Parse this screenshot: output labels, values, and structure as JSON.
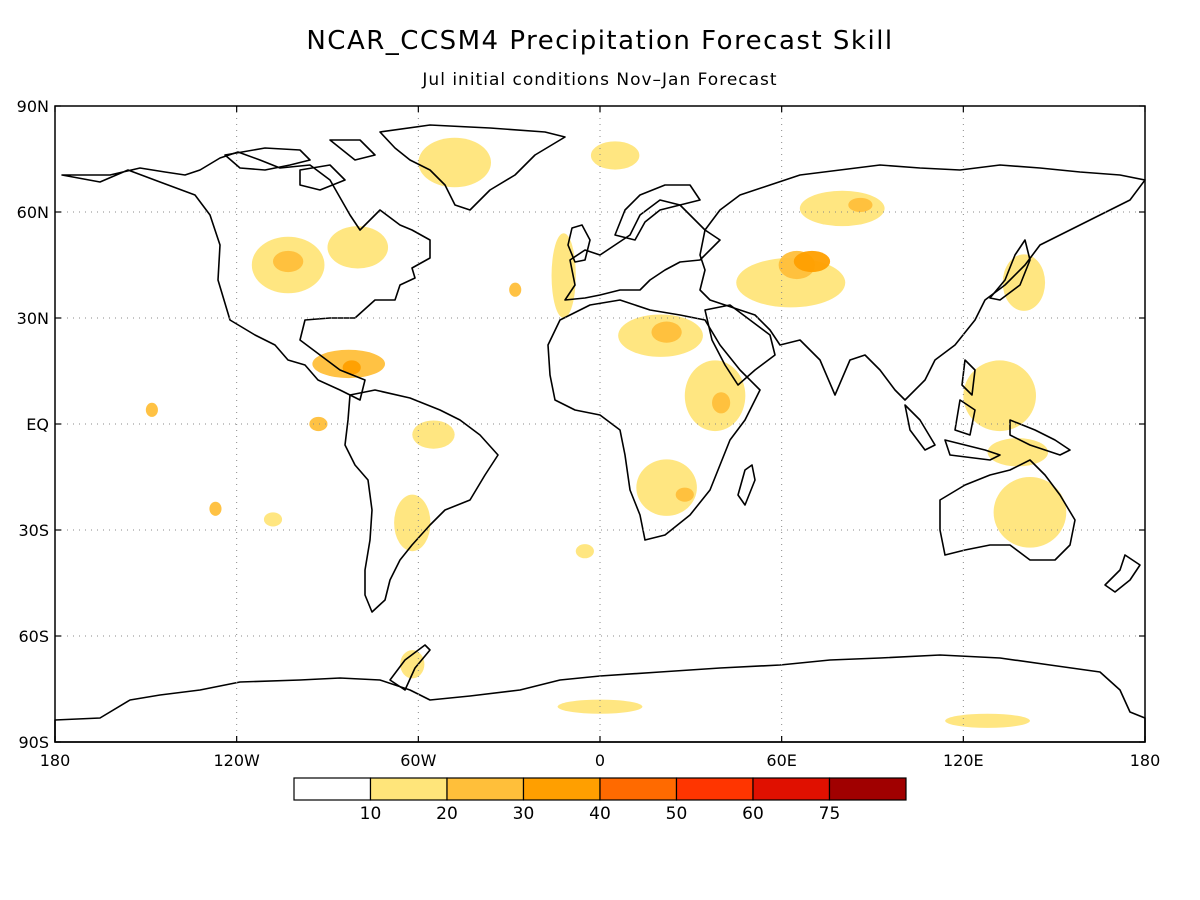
{
  "title": "NCAR_CCSM4 Precipitation Forecast Skill",
  "subtitle": "Jul initial conditions   Nov–Jan Forecast",
  "map": {
    "lon_range": [
      -180,
      180
    ],
    "lat_range": [
      -90,
      90
    ],
    "lat_ticks": [
      {
        "value": 90,
        "label": "90N"
      },
      {
        "value": 60,
        "label": "60N"
      },
      {
        "value": 30,
        "label": "30N"
      },
      {
        "value": 0,
        "label": "EQ"
      },
      {
        "value": -30,
        "label": "30S"
      },
      {
        "value": -60,
        "label": "60S"
      },
      {
        "value": -90,
        "label": "90S"
      }
    ],
    "lon_ticks": [
      {
        "value": -180,
        "label": "180"
      },
      {
        "value": -120,
        "label": "120W"
      },
      {
        "value": -60,
        "label": "60W"
      },
      {
        "value": 0,
        "label": "0"
      },
      {
        "value": 60,
        "label": "60E"
      },
      {
        "value": 120,
        "label": "120E"
      },
      {
        "value": 180,
        "label": "180"
      }
    ],
    "gridlines": "dotted",
    "coastline_color": "#000000"
  },
  "colorbar": {
    "colors": [
      "#ffffff",
      "#ffe57a",
      "#ffbf3a",
      "#ff9f00",
      "#ff6a00",
      "#ff3500",
      "#e01000",
      "#a00000"
    ],
    "labels": [
      "10",
      "20",
      "30",
      "40",
      "50",
      "60",
      "75"
    ]
  },
  "skill_patches": [
    {
      "lon": -103,
      "lat": 45,
      "rx": 12,
      "ry": 8,
      "level": 1
    },
    {
      "lon": -103,
      "lat": 46,
      "rx": 5,
      "ry": 3,
      "level": 2
    },
    {
      "lon": -80,
      "lat": 50,
      "rx": 10,
      "ry": 6,
      "level": 1
    },
    {
      "lon": -83,
      "lat": 17,
      "rx": 12,
      "ry": 4,
      "level": 2
    },
    {
      "lon": -82,
      "lat": 16,
      "rx": 3,
      "ry": 2,
      "level": 3
    },
    {
      "lon": -48,
      "lat": 74,
      "rx": 12,
      "ry": 7,
      "level": 1
    },
    {
      "lon": -55,
      "lat": -3,
      "rx": 7,
      "ry": 4,
      "level": 1
    },
    {
      "lon": -62,
      "lat": -28,
      "rx": 6,
      "ry": 8,
      "level": 1
    },
    {
      "lon": -28,
      "lat": 38,
      "rx": 2,
      "ry": 2,
      "level": 2
    },
    {
      "lon": -12,
      "lat": 42,
      "rx": 4,
      "ry": 12,
      "level": 1
    },
    {
      "lon": -148,
      "lat": 4,
      "rx": 2,
      "ry": 2,
      "level": 2
    },
    {
      "lon": -93,
      "lat": 0,
      "rx": 3,
      "ry": 2,
      "level": 2
    },
    {
      "lon": -127,
      "lat": -24,
      "rx": 2,
      "ry": 2,
      "level": 2
    },
    {
      "lon": -108,
      "lat": -27,
      "rx": 3,
      "ry": 2,
      "level": 1
    },
    {
      "lon": 5,
      "lat": 76,
      "rx": 8,
      "ry": 4,
      "level": 1
    },
    {
      "lon": 20,
      "lat": 25,
      "rx": 14,
      "ry": 6,
      "level": 1
    },
    {
      "lon": 22,
      "lat": 26,
      "rx": 5,
      "ry": 3,
      "level": 2
    },
    {
      "lon": 38,
      "lat": 8,
      "rx": 10,
      "ry": 10,
      "level": 1
    },
    {
      "lon": 40,
      "lat": 6,
      "rx": 3,
      "ry": 3,
      "level": 2
    },
    {
      "lon": 22,
      "lat": -18,
      "rx": 10,
      "ry": 8,
      "level": 1
    },
    {
      "lon": 28,
      "lat": -20,
      "rx": 3,
      "ry": 2,
      "level": 2
    },
    {
      "lon": 63,
      "lat": 40,
      "rx": 18,
      "ry": 7,
      "level": 1
    },
    {
      "lon": 65,
      "lat": 45,
      "rx": 6,
      "ry": 4,
      "level": 2
    },
    {
      "lon": 80,
      "lat": 61,
      "rx": 14,
      "ry": 5,
      "level": 1
    },
    {
      "lon": 86,
      "lat": 62,
      "rx": 4,
      "ry": 2,
      "level": 2
    },
    {
      "lon": 70,
      "lat": 46,
      "rx": 6,
      "ry": 3,
      "level": 3
    },
    {
      "lon": 140,
      "lat": 40,
      "rx": 7,
      "ry": 8,
      "level": 1
    },
    {
      "lon": 132,
      "lat": 8,
      "rx": 12,
      "ry": 10,
      "level": 1
    },
    {
      "lon": 138,
      "lat": -8,
      "rx": 10,
      "ry": 4,
      "level": 1
    },
    {
      "lon": 142,
      "lat": -25,
      "rx": 12,
      "ry": 10,
      "level": 1
    },
    {
      "lon": 128,
      "lat": -84,
      "rx": 14,
      "ry": 2,
      "level": 1
    },
    {
      "lon": 0,
      "lat": -80,
      "rx": 14,
      "ry": 2,
      "level": 1
    },
    {
      "lon": -5,
      "lat": -36,
      "rx": 3,
      "ry": 2,
      "level": 1
    },
    {
      "lon": -62,
      "lat": -68,
      "rx": 4,
      "ry": 4,
      "level": 1
    }
  ]
}
